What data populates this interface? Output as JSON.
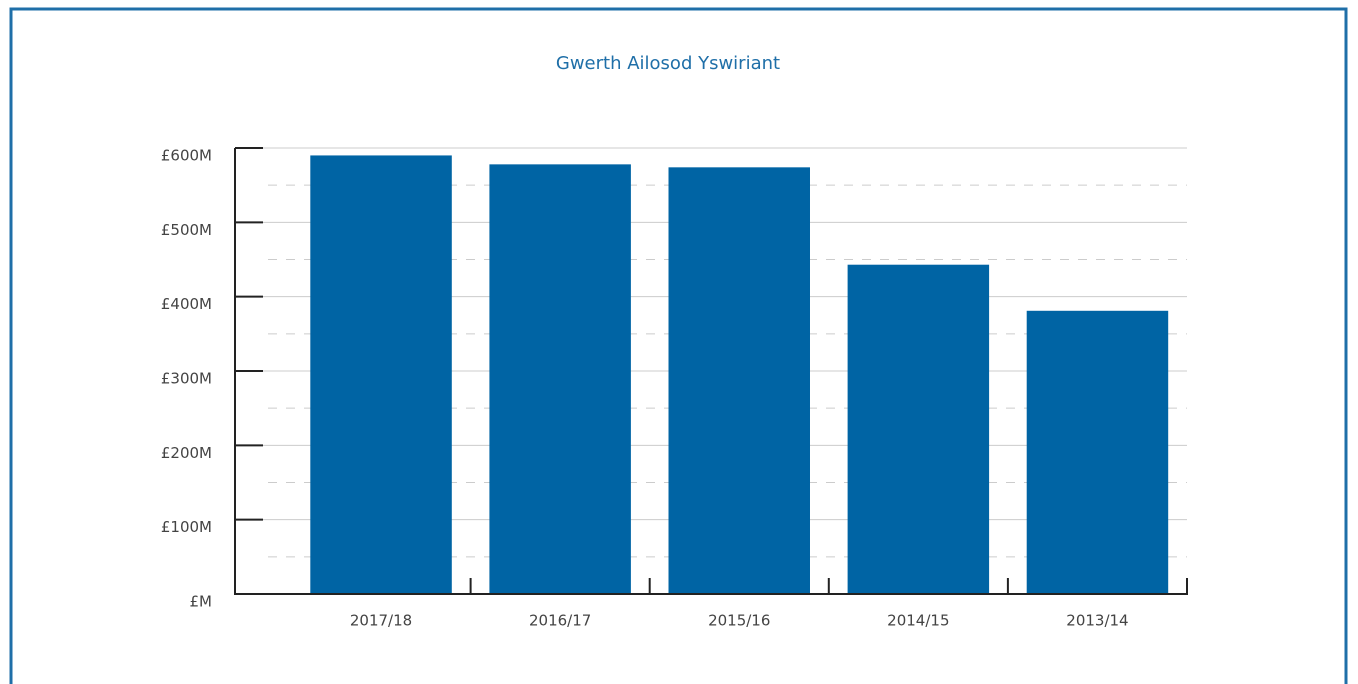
{
  "chart_data": {
    "type": "bar",
    "title": "Gwerth Ailosod Yswiriant",
    "categories": [
      "2017/18",
      "2016/17",
      "2015/16",
      "2014/15",
      "2013/14"
    ],
    "values": [
      590,
      578,
      574,
      443,
      381
    ],
    "color": "#0064a4",
    "ylim": [
      0,
      600
    ],
    "yticks": [
      {
        "value": 0,
        "label": "£M"
      },
      {
        "value": 100,
        "label": "£100M"
      },
      {
        "value": 200,
        "label": "£200M"
      },
      {
        "value": 300,
        "label": "£300M"
      },
      {
        "value": 400,
        "label": "£400M"
      },
      {
        "value": 500,
        "label": "£500M"
      },
      {
        "value": 600,
        "label": "£600M"
      }
    ],
    "minor_yticks": [
      50,
      150,
      250,
      350,
      450,
      550
    ],
    "grid": true
  }
}
